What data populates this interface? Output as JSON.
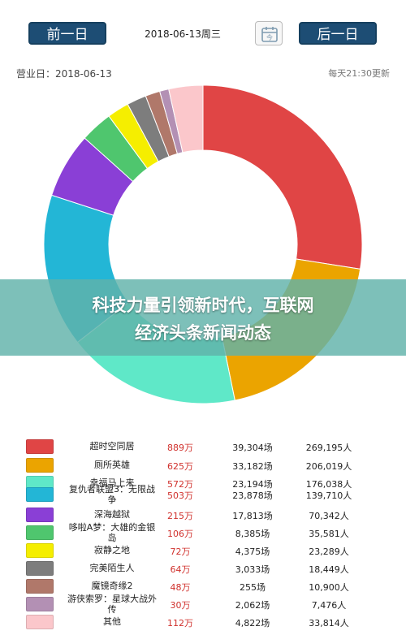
{
  "header": {
    "prev_label": "前一日",
    "date": "2018-06-13周三",
    "next_label": "后一日",
    "calendar_icon": "calendar-icon"
  },
  "info": {
    "biz_date": "营业日：2018-06-13",
    "update_note": "每天21:30更新"
  },
  "banner": {
    "line1": "科技力量引领新时代，互联网",
    "line2": "经济头条新闻动态"
  },
  "chart_data": {
    "type": "pie",
    "donut": true,
    "categories": [
      "超时空同居",
      "厕所英雄",
      "幸福马上来",
      "复仇者联盟3：无限战争",
      "深海越狱",
      "哆啦A梦：大雄的金银岛",
      "寂静之地",
      "完美陌生人",
      "魔镜奇缘2",
      "游侠索罗：星球大战外传",
      "其他"
    ],
    "values": [
      889,
      625,
      572,
      503,
      215,
      106,
      72,
      64,
      48,
      30,
      112
    ],
    "colors": [
      "#e04545",
      "#eba400",
      "#5fe8c8",
      "#23b6d6",
      "#8a3fd6",
      "#4fc66e",
      "#f5ee00",
      "#7d7d7d",
      "#b0786a",
      "#b390b4",
      "#fbc7cb"
    ]
  },
  "rows": [
    {
      "name": "超时空同居",
      "gross": "889万",
      "shows": "39,304场",
      "people": "269,195人"
    },
    {
      "name": "厕所英雄",
      "gross": "625万",
      "shows": "33,182场",
      "people": "206,019人"
    },
    {
      "name": "幸福马上来",
      "gross": "572万",
      "shows": "23,194场",
      "people": "176,038人"
    },
    {
      "name": "复仇者联盟3：无限战争",
      "gross": "503万",
      "shows": "23,878场",
      "people": "139,710人"
    },
    {
      "name": "深海越狱",
      "gross": "215万",
      "shows": "17,813场",
      "people": "70,342人"
    },
    {
      "name": "哆啦A梦：大雄的金银岛",
      "gross": "106万",
      "shows": "8,385场",
      "people": "35,581人"
    },
    {
      "name": "寂静之地",
      "gross": "72万",
      "shows": "4,375场",
      "people": "23,289人"
    },
    {
      "name": "完美陌生人",
      "gross": "64万",
      "shows": "3,033场",
      "people": "18,449人"
    },
    {
      "name": "魔镜奇缘2",
      "gross": "48万",
      "shows": "255场",
      "people": "10,900人"
    },
    {
      "name": "游侠索罗：星球大战外传",
      "gross": "30万",
      "shows": "2,062场",
      "people": "7,476人"
    },
    {
      "name": "其他",
      "gross": "112万",
      "shows": "4,822场",
      "people": "33,814人"
    }
  ]
}
